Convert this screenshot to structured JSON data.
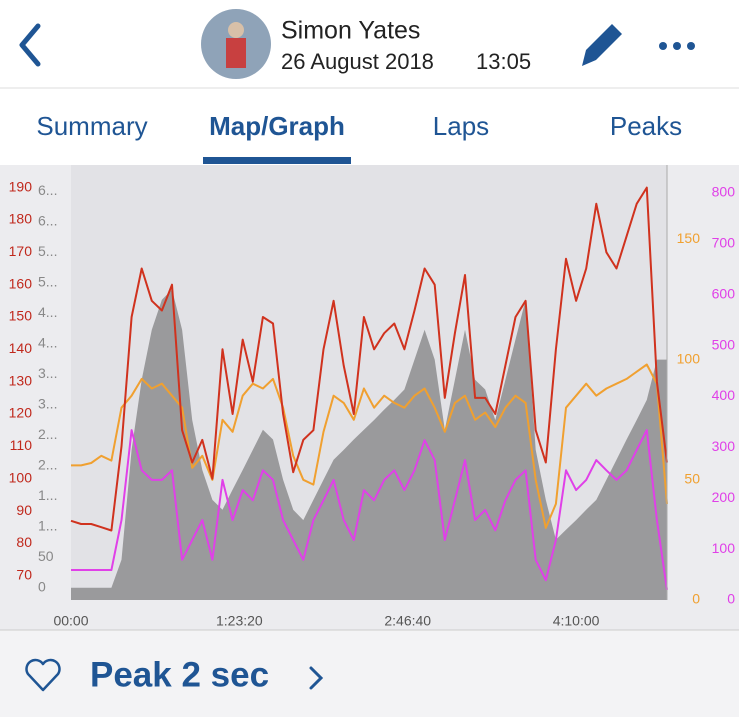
{
  "header": {
    "name": "Simon Yates",
    "date": "26 August 2018",
    "time": "13:05"
  },
  "tabs": [
    "Summary",
    "Map/Graph",
    "Laps",
    "Peaks"
  ],
  "chart_data": {
    "type": "line",
    "x": [
      0,
      300,
      600,
      900,
      1200,
      1500,
      1800,
      2100,
      2400,
      2700,
      3000,
      3300,
      3600,
      3900,
      4200,
      4500,
      4800,
      5100,
      5400,
      5700,
      6000,
      6300,
      6600,
      6900,
      7200,
      7500,
      7800,
      8100,
      8400,
      8700,
      9000,
      9300,
      9600,
      9900,
      10200,
      10500,
      10800,
      11100,
      11400,
      11700,
      12000,
      12300,
      12600,
      12900,
      13200,
      13500,
      13800,
      14100,
      14400,
      14700,
      15000,
      15300,
      15600,
      15900,
      16200,
      16500,
      16800,
      17100,
      17400,
      17700
    ],
    "xlim": [
      0,
      17700
    ],
    "xticks": [
      {
        "value": 0,
        "label": "00:00"
      },
      {
        "value": 5000,
        "label": "1:23:20"
      },
      {
        "value": 10000,
        "label": "2:46:40"
      },
      {
        "value": 15000,
        "label": "4:10:00"
      }
    ],
    "ylim": [
      62.5,
      197
    ],
    "yticks": [
      70,
      80,
      90,
      100,
      110,
      120,
      130,
      140,
      150,
      160,
      170,
      180,
      190
    ],
    "y2lim": [
      0,
      855
    ],
    "y2ticks": [
      0,
      100,
      200,
      300,
      400,
      500,
      600,
      700,
      800
    ],
    "y3lim": [
      0,
      181
    ],
    "y3ticks": [
      0,
      50,
      100,
      150
    ],
    "y4lim": [
      -20,
      693
    ],
    "y4ticks": [
      0,
      50,
      {
        "value": 100,
        "label": "1..."
      },
      {
        "value": 150,
        "label": "1..."
      },
      {
        "value": 200,
        "label": "2..."
      },
      {
        "value": 250,
        "label": "2..."
      },
      {
        "value": 300,
        "label": "3..."
      },
      {
        "value": 350,
        "label": "3..."
      },
      {
        "value": 400,
        "label": "4..."
      },
      {
        "value": 450,
        "label": "4..."
      },
      {
        "value": 500,
        "label": "5..."
      },
      {
        "value": 550,
        "label": "5..."
      },
      {
        "value": 600,
        "label": "6..."
      },
      {
        "value": 650,
        "label": "6..."
      }
    ],
    "series": [
      {
        "type": "area",
        "axis": "y4",
        "color": "#9a9a9c",
        "values": [
          0,
          0,
          0,
          0,
          0,
          46,
          226,
          341,
          423,
          472,
          489,
          423,
          275,
          193,
          144,
          128,
          161,
          193,
          226,
          259,
          243,
          177,
          128,
          111,
          144,
          177,
          210,
          226,
          243,
          259,
          275,
          292,
          308,
          325,
          374,
          423,
          374,
          259,
          341,
          423,
          341,
          325,
          275,
          341,
          407,
          472,
          226,
          144,
          79,
          95,
          111,
          128,
          144,
          177,
          210,
          243,
          275,
          308,
          374,
          374
        ]
      },
      {
        "axis": "y2",
        "color": "#e040e8",
        "values": [
          59,
          59,
          59,
          59,
          59,
          157,
          334,
          255,
          236,
          236,
          255,
          79,
          118,
          157,
          79,
          236,
          157,
          216,
          196,
          255,
          236,
          157,
          118,
          79,
          157,
          196,
          236,
          157,
          118,
          216,
          196,
          236,
          255,
          216,
          255,
          314,
          275,
          118,
          196,
          275,
          157,
          177,
          137,
          196,
          236,
          255,
          79,
          39,
          118,
          255,
          216,
          236,
          275,
          255,
          236,
          255,
          295,
          334,
          157,
          20
        ]
      },
      {
        "axis": "y3",
        "color": "#f0a030",
        "values": [
          56,
          56,
          57,
          60,
          58,
          80,
          85,
          92,
          88,
          90,
          85,
          80,
          55,
          60,
          50,
          75,
          70,
          85,
          90,
          88,
          92,
          80,
          60,
          50,
          48,
          70,
          85,
          82,
          75,
          88,
          80,
          85,
          82,
          80,
          85,
          88,
          80,
          70,
          82,
          85,
          75,
          78,
          72,
          80,
          85,
          82,
          50,
          30,
          40,
          80,
          85,
          90,
          85,
          88,
          90,
          92,
          95,
          98,
          90,
          40
        ]
      },
      {
        "axis": "y",
        "color": "#d0321e",
        "values": [
          87,
          86,
          86,
          85,
          84,
          110,
          150,
          165,
          155,
          152,
          160,
          115,
          105,
          112,
          100,
          140,
          120,
          143,
          130,
          150,
          148,
          120,
          102,
          112,
          115,
          140,
          155,
          135,
          120,
          150,
          140,
          145,
          148,
          140,
          152,
          165,
          160,
          125,
          145,
          163,
          125,
          125,
          120,
          135,
          150,
          155,
          115,
          105,
          140,
          168,
          155,
          165,
          185,
          170,
          165,
          175,
          185,
          190,
          130,
          105
        ]
      }
    ]
  },
  "footer": {
    "label": "Peak 2 sec"
  }
}
